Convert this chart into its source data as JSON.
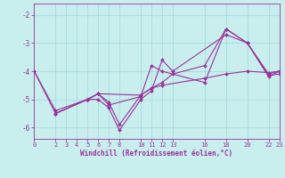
{
  "background_color": "#c8eeee",
  "grid_color": "#aadddd",
  "line_color": "#993399",
  "xticks": [
    0,
    2,
    3,
    4,
    5,
    6,
    7,
    8,
    10,
    11,
    12,
    13,
    16,
    18,
    20,
    22,
    23
  ],
  "yticks": [
    -6,
    -5,
    -4,
    -3,
    -2
  ],
  "xlabel": "Windchill (Refroidissement éolien,°C)",
  "xlim": [
    0,
    23
  ],
  "ylim": [
    -6.4,
    -1.6
  ],
  "series": [
    {
      "x": [
        0,
        2,
        5,
        6,
        7,
        8,
        10,
        11,
        12,
        13,
        18,
        20,
        22,
        23
      ],
      "y": [
        -4.0,
        -5.5,
        -5.0,
        -5.0,
        -5.3,
        -6.1,
        -5.0,
        -4.7,
        -3.6,
        -4.0,
        -2.7,
        -3.0,
        -4.1,
        -4.0
      ]
    },
    {
      "x": [
        2,
        5,
        6,
        7,
        10,
        11,
        12,
        16,
        18,
        20,
        22,
        23
      ],
      "y": [
        -5.5,
        -5.0,
        -4.8,
        -5.2,
        -4.9,
        -3.8,
        -4.0,
        -4.4,
        -2.5,
        -3.0,
        -4.2,
        -4.0
      ]
    },
    {
      "x": [
        0,
        2,
        5,
        6,
        10,
        11,
        12,
        16,
        18,
        20,
        22,
        23
      ],
      "y": [
        -4.0,
        -5.4,
        -5.0,
        -4.8,
        -4.85,
        -4.6,
        -4.5,
        -4.25,
        -4.1,
        -4.0,
        -4.05,
        -4.0
      ]
    },
    {
      "x": [
        2,
        5,
        6,
        7,
        8,
        10,
        11,
        12,
        13,
        16,
        18,
        20,
        22,
        23
      ],
      "y": [
        -5.5,
        -5.0,
        -4.8,
        -5.1,
        -5.9,
        -4.85,
        -4.6,
        -4.4,
        -4.1,
        -3.8,
        -2.5,
        -3.0,
        -4.15,
        -4.1
      ]
    }
  ],
  "figsize": [
    3.2,
    2.0
  ],
  "dpi": 100,
  "tick_fontsize": 5,
  "xlabel_fontsize": 5.5,
  "marker_size": 2.0,
  "linewidth": 0.8
}
